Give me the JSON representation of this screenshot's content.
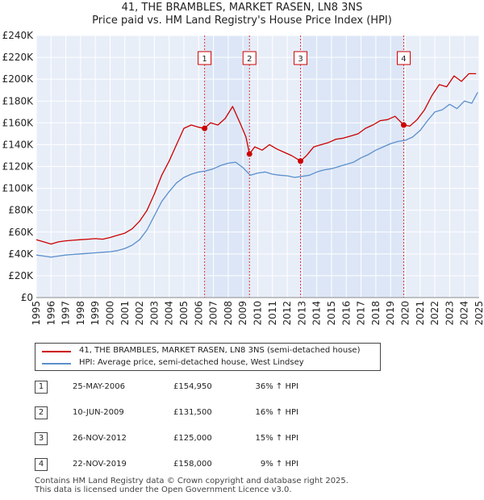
{
  "chart_data": {
    "type": "line",
    "title": "41, THE BRAMBLES, MARKET RASEN, LN8 3NS",
    "subtitle": "Price paid vs. HM Land Registry's House Price Index (HPI)",
    "xlim": [
      1995,
      2025
    ],
    "ylim": [
      0,
      240000
    ],
    "x_ticks": [
      1995,
      1996,
      1997,
      1998,
      1999,
      2000,
      2001,
      2002,
      2003,
      2004,
      2005,
      2006,
      2007,
      2008,
      2009,
      2010,
      2011,
      2012,
      2013,
      2014,
      2015,
      2016,
      2017,
      2018,
      2019,
      2020,
      2021,
      2022,
      2023,
      2024,
      2025
    ],
    "x_tick_labels": [
      "1995",
      "1996",
      "1997",
      "1998",
      "1999",
      "2000",
      "2001",
      "2002",
      "2003",
      "2004",
      "2005",
      "2006",
      "2007",
      "2008",
      "2009",
      "2010",
      "2011",
      "2012",
      "2013",
      "2014",
      "2015",
      "2016",
      "2017",
      "2018",
      "2019",
      "2020",
      "2021",
      "2022",
      "2023",
      "2024",
      "2025"
    ],
    "y_ticks": [
      0,
      20000,
      40000,
      60000,
      80000,
      100000,
      120000,
      140000,
      160000,
      180000,
      200000,
      220000,
      240000
    ],
    "y_tick_labels": [
      "£0",
      "£20K",
      "£40K",
      "£60K",
      "£80K",
      "£100K",
      "£120K",
      "£140K",
      "£160K",
      "£180K",
      "£200K",
      "£220K",
      "£240K"
    ],
    "grid": true,
    "series": [
      {
        "name": "41, THE BRAMBLES, MARKET RASEN, LN8 3NS (semi-detached house)",
        "color": "#cc0000",
        "x": [
          1995.0,
          1995.5,
          1996.0,
          1996.5,
          1997.0,
          1997.5,
          1998.0,
          1998.5,
          1999.0,
          1999.5,
          2000.0,
          2000.5,
          2001.0,
          2001.5,
          2002.0,
          2002.5,
          2003.0,
          2003.5,
          2004.0,
          2004.5,
          2005.0,
          2005.5,
          2006.0,
          2006.4,
          2006.8,
          2007.3,
          2007.8,
          2008.3,
          2008.8,
          2009.2,
          2009.44,
          2009.8,
          2010.3,
          2010.8,
          2011.3,
          2011.8,
          2012.3,
          2012.9,
          2013.3,
          2013.8,
          2014.3,
          2014.8,
          2015.3,
          2015.8,
          2016.3,
          2016.8,
          2017.3,
          2017.8,
          2018.3,
          2018.8,
          2019.3,
          2019.89,
          2020.3,
          2020.8,
          2021.3,
          2021.8,
          2022.3,
          2022.8,
          2023.3,
          2023.8,
          2024.3,
          2024.8
        ],
        "values": [
          53000,
          51000,
          49000,
          51000,
          52000,
          52500,
          53000,
          53500,
          54000,
          53500,
          55000,
          57000,
          59000,
          63000,
          70000,
          80000,
          95000,
          112000,
          125000,
          140000,
          155000,
          158000,
          156000,
          154950,
          160000,
          158000,
          164000,
          175000,
          160000,
          147000,
          131500,
          138000,
          135000,
          140000,
          136000,
          133000,
          130000,
          125000,
          130000,
          138000,
          140000,
          142000,
          145000,
          146000,
          148000,
          150000,
          155000,
          158000,
          162000,
          163000,
          166000,
          158000,
          157000,
          163000,
          172000,
          185000,
          195000,
          193000,
          203000,
          198000,
          205000,
          205000
        ]
      },
      {
        "name": "HPI: Average price, semi-detached house, West Lindsey",
        "color": "#5b8fcc",
        "x": [
          1995.0,
          1995.5,
          1996.0,
          1996.5,
          1997.0,
          1997.5,
          1998.0,
          1998.5,
          1999.0,
          1999.5,
          2000.0,
          2000.5,
          2001.0,
          2001.5,
          2002.0,
          2002.5,
          2003.0,
          2003.5,
          2004.0,
          2004.5,
          2005.0,
          2005.5,
          2006.0,
          2006.5,
          2007.0,
          2007.5,
          2008.0,
          2008.5,
          2009.0,
          2009.5,
          2010.0,
          2010.5,
          2011.0,
          2011.5,
          2012.0,
          2012.5,
          2013.0,
          2013.5,
          2014.0,
          2014.5,
          2015.0,
          2015.5,
          2016.0,
          2016.5,
          2017.0,
          2017.5,
          2018.0,
          2018.5,
          2019.0,
          2019.5,
          2020.0,
          2020.5,
          2021.0,
          2021.5,
          2022.0,
          2022.5,
          2023.0,
          2023.5,
          2024.0,
          2024.5,
          2024.9
        ],
        "values": [
          39000,
          38000,
          37000,
          38000,
          39000,
          39500,
          40000,
          40500,
          41000,
          41500,
          42000,
          43000,
          45000,
          48000,
          53000,
          62000,
          75000,
          88000,
          97000,
          105000,
          110000,
          113000,
          115000,
          116000,
          118000,
          121000,
          123000,
          124000,
          119000,
          112000,
          114000,
          115000,
          113000,
          112000,
          111500,
          110000,
          111000,
          112000,
          115000,
          117000,
          118000,
          120000,
          122000,
          124000,
          128000,
          131000,
          135000,
          138000,
          141000,
          143000,
          144000,
          147000,
          153000,
          162000,
          170000,
          172000,
          177000,
          173000,
          180000,
          178000,
          188000
        ]
      }
    ],
    "sale_markers": [
      {
        "label": "1",
        "x": 2006.4,
        "value": 154950
      },
      {
        "label": "2",
        "x": 2009.44,
        "value": 131500
      },
      {
        "label": "3",
        "x": 2012.9,
        "value": 125000
      },
      {
        "label": "4",
        "x": 2019.89,
        "value": 158000
      }
    ]
  },
  "legend": [
    {
      "label": "41, THE BRAMBLES, MARKET RASEN, LN8 3NS (semi-detached house)",
      "color": "#cc0000"
    },
    {
      "label": "HPI: Average price, semi-detached house, West Lindsey",
      "color": "#5b8fcc"
    }
  ],
  "sales": [
    {
      "num": "1",
      "date": "25-MAY-2006",
      "price": "£154,950",
      "hpi": "36% ↑ HPI"
    },
    {
      "num": "2",
      "date": "10-JUN-2009",
      "price": "£131,500",
      "hpi": "16% ↑ HPI"
    },
    {
      "num": "3",
      "date": "26-NOV-2012",
      "price": "£125,000",
      "hpi": "15% ↑ HPI"
    },
    {
      "num": "4",
      "date": "22-NOV-2019",
      "price": "£158,000",
      "hpi": "9% ↑ HPI"
    }
  ],
  "footer": {
    "line1": "Contains HM Land Registry data © Crown copyright and database right 2025.",
    "line2": "This data is licensed under the Open Government Licence v3.0."
  },
  "colors": {
    "plot_background": "#e8eef8",
    "grid": "#ffffff",
    "shade": "#dce6f6",
    "marker_line": "#dd3333"
  }
}
